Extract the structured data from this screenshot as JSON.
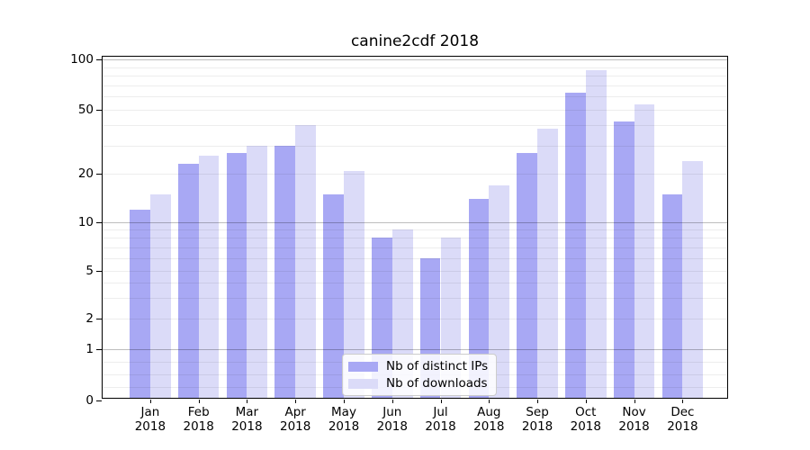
{
  "chart_data": {
    "type": "bar",
    "title": "canine2cdf 2018",
    "categories": [
      "Jan 2018",
      "Feb 2018",
      "Mar 2018",
      "Apr 2018",
      "May 2018",
      "Jun 2018",
      "Jul 2018",
      "Aug 2018",
      "Sep 2018",
      "Oct 2018",
      "Nov 2018",
      "Dec 2018"
    ],
    "series": [
      {
        "name": "Nb of distinct IPs",
        "color": "#a8a8f4",
        "values": [
          12,
          23,
          27,
          30,
          15,
          8,
          6,
          14,
          27,
          63,
          42,
          15
        ]
      },
      {
        "name": "Nb of downloads",
        "color": "#dbdbf8",
        "values": [
          15,
          26,
          30,
          40,
          21,
          9,
          8,
          17,
          38,
          86,
          54,
          24
        ]
      }
    ],
    "xlabel": "",
    "ylabel": "",
    "yscale": "symlog",
    "ylim": [
      0,
      100
    ],
    "ytick_labels": [
      "0",
      "1",
      "2",
      "5",
      "10",
      "20",
      "50",
      "100"
    ],
    "grid": "on",
    "legend_position": "lower center",
    "colors": {
      "background": "#ffffff",
      "axis": "#000000",
      "text": "#000000",
      "legend_border": "#cccccc"
    }
  }
}
